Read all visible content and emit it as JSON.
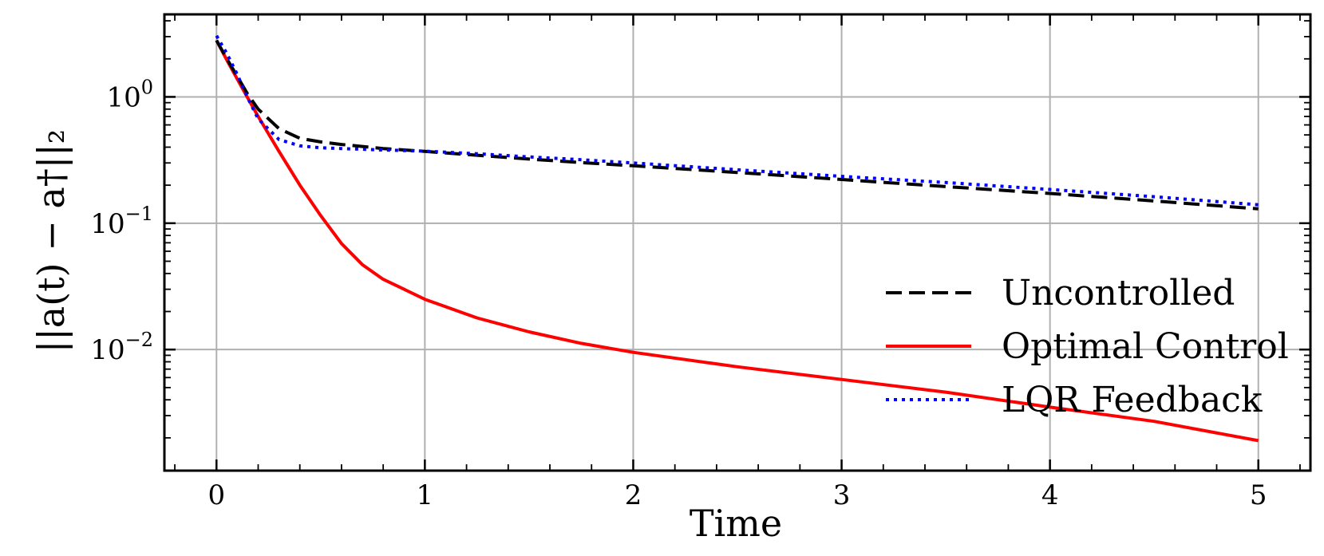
{
  "chart_data": {
    "type": "line",
    "xlabel": "Time",
    "ylabel": "||a(t) − a†||₂",
    "xlim": [
      -0.25,
      5.25
    ],
    "ylim": [
      0.0011,
      4.5
    ],
    "yscale": "log",
    "grid": true,
    "legend_position": "lower-right",
    "x_ticks": [
      0,
      1,
      2,
      3,
      4,
      5
    ],
    "x_tick_labels": [
      "0",
      "1",
      "2",
      "3",
      "4",
      "5"
    ],
    "y_ticks": [
      1,
      0.1,
      0.01
    ],
    "y_tick_labels": [
      {
        "base": "10",
        "exp": "0"
      },
      {
        "base": "10",
        "exp": "−1"
      },
      {
        "base": "10",
        "exp": "−2"
      }
    ],
    "x": [
      0,
      0.05,
      0.1,
      0.15,
      0.2,
      0.3,
      0.4,
      0.5,
      0.6,
      0.7,
      0.8,
      0.9,
      1.0,
      1.25,
      1.5,
      1.75,
      2.0,
      2.5,
      3.0,
      3.5,
      4.0,
      4.5,
      5.0
    ],
    "series": [
      {
        "name": "Uncontrolled",
        "color": "#000000",
        "style": "dashed",
        "values": [
          2.8,
          2.0,
          1.45,
          1.05,
          0.8,
          0.56,
          0.47,
          0.44,
          0.42,
          0.405,
          0.39,
          0.38,
          0.37,
          0.345,
          0.322,
          0.302,
          0.285,
          0.252,
          0.222,
          0.195,
          0.172,
          0.15,
          0.13
        ]
      },
      {
        "name": "Optimal Control",
        "color": "#ff0000",
        "style": "solid",
        "values": [
          2.8,
          1.95,
          1.38,
          0.98,
          0.7,
          0.37,
          0.2,
          0.115,
          0.069,
          0.047,
          0.036,
          0.03,
          0.025,
          0.0178,
          0.0138,
          0.0112,
          0.0095,
          0.0073,
          0.0058,
          0.0046,
          0.0035,
          0.0027,
          0.0019
        ]
      },
      {
        "name": "LQR Feedback",
        "color": "#0000ff",
        "style": "dotted",
        "values": [
          3.05,
          2.2,
          1.5,
          0.98,
          0.67,
          0.46,
          0.41,
          0.395,
          0.39,
          0.385,
          0.38,
          0.376,
          0.372,
          0.355,
          0.335,
          0.318,
          0.3,
          0.265,
          0.235,
          0.21,
          0.185,
          0.162,
          0.14
        ]
      }
    ]
  }
}
